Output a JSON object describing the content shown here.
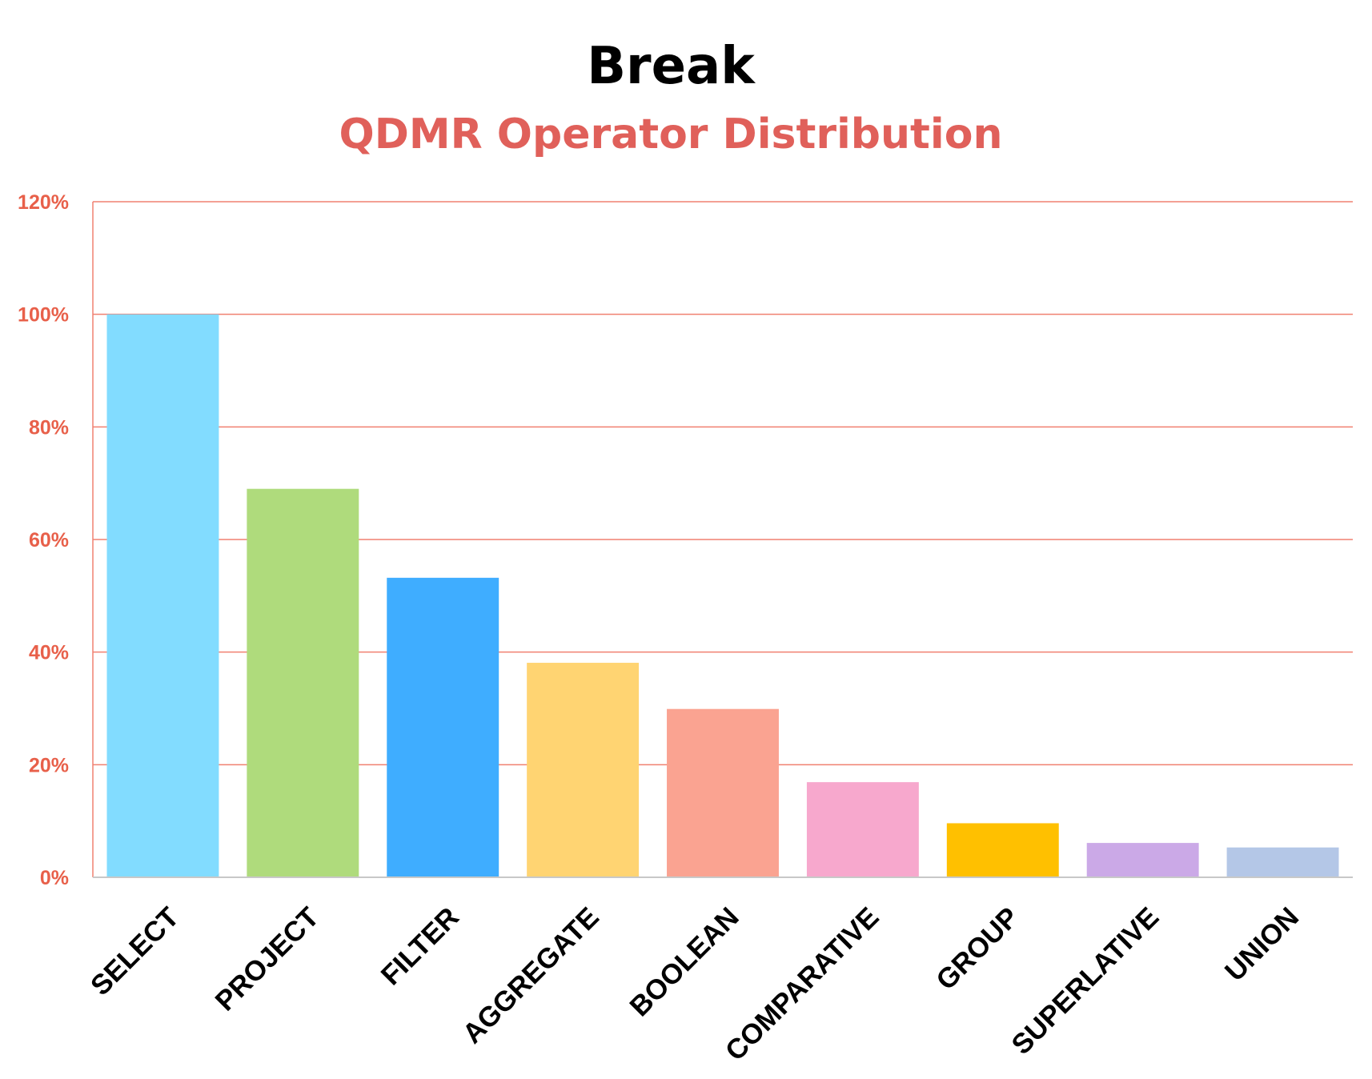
{
  "chart_data": {
    "type": "bar",
    "title": "Break",
    "subtitle": "QDMR Operator Distribution",
    "categories": [
      "SELECT",
      "PROJECT",
      "FILTER",
      "AGGREGATE",
      "BOOLEAN",
      "COMPARATIVE",
      "GROUP",
      "SUPERLATIVE",
      "UNION"
    ],
    "values": [
      100,
      69,
      53.2,
      38.1,
      29.9,
      16.9,
      9.6,
      6.1,
      5.3
    ],
    "value_unit": "%",
    "ylim": [
      0,
      120
    ],
    "yticks": [
      "0%",
      "20%",
      "40%",
      "60%",
      "80%",
      "100%",
      "120%"
    ],
    "grid": true,
    "legend": "none",
    "colors": {
      "bars": [
        "#82dcff",
        "#afdb7c",
        "#3fadff",
        "#ffd472",
        "#faa391",
        "#f7a8cd",
        "#ffc000",
        "#cba9e7",
        "#b4c7e7"
      ],
      "subtitle": "#e0605a",
      "ytick": "#e8604a",
      "grid": "#f08070",
      "axis": "#c8c8c8"
    }
  }
}
